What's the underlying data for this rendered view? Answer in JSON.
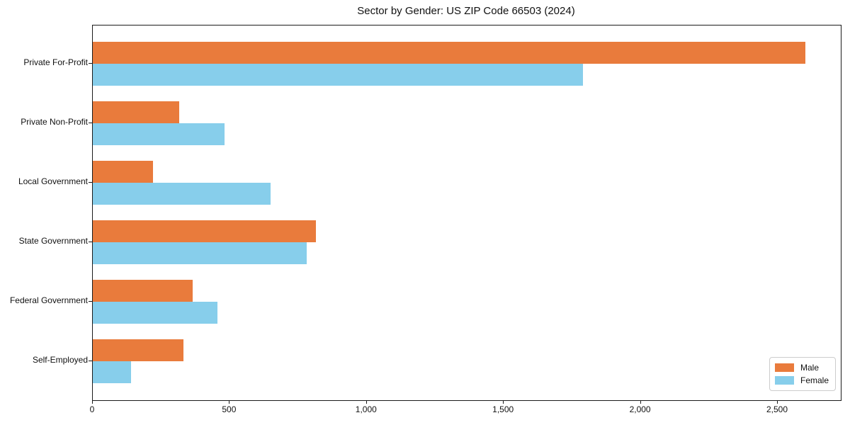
{
  "figure": {
    "background": "#ffffff"
  },
  "chart_data": {
    "type": "bar",
    "orientation": "horizontal",
    "title": "Sector by Gender: US ZIP Code 66503 (2024)",
    "categories": [
      "Private For-Profit",
      "Private Non-Profit",
      "Local Government",
      "State Government",
      "Federal Government",
      "Self-Employed"
    ],
    "series": [
      {
        "name": "Male",
        "color": "#E97B3C",
        "values": [
          2600,
          315,
          220,
          815,
          365,
          330
        ]
      },
      {
        "name": "Female",
        "color": "#87CEEB",
        "values": [
          1790,
          480,
          650,
          780,
          455,
          140
        ]
      }
    ],
    "x_axis": {
      "ticks": [
        0,
        500,
        1000,
        1500,
        2000,
        2500
      ],
      "tick_labels": [
        "0",
        "500",
        "1,000",
        "1,500",
        "2,000",
        "2,500"
      ],
      "min": 0,
      "max": 2730
    },
    "y_axis": {
      "label": ""
    },
    "grid": false,
    "legend": {
      "position": "lower right",
      "entries": [
        "Male",
        "Female"
      ]
    }
  }
}
